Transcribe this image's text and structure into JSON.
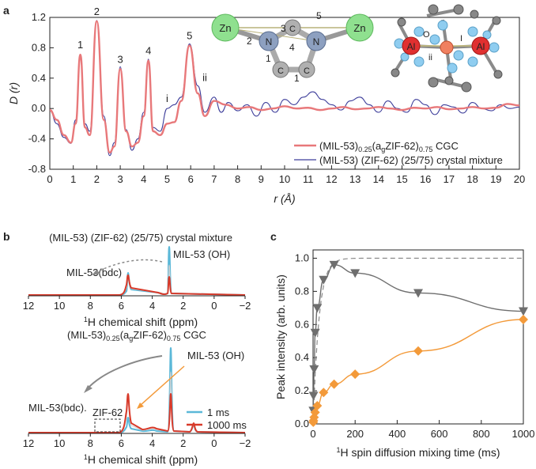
{
  "chart_data": [
    {
      "panel": "a",
      "type": "line",
      "ylabel": "D (r)",
      "xlabel": "r (Å)",
      "xlim": [
        0,
        20
      ],
      "ylim": [
        -0.8,
        1.2
      ],
      "xticks": [
        "0",
        "1",
        "2",
        "3",
        "4",
        "5",
        "6",
        "7",
        "8",
        "9",
        "10",
        "11",
        "12",
        "13",
        "14",
        "15",
        "16",
        "17",
        "18",
        "19",
        "20"
      ],
      "yticks": [
        "-0.8",
        "-0.4",
        "0.0",
        "0.4",
        "0.8",
        "1.2"
      ],
      "peak_labels": [
        {
          "text": "1",
          "x": 1.3,
          "y": 0.71
        },
        {
          "text": "2",
          "x": 2.0,
          "y": 1.15
        },
        {
          "text": "3",
          "x": 3.0,
          "y": 0.52
        },
        {
          "text": "4",
          "x": 4.2,
          "y": 0.63
        },
        {
          "text": "5",
          "x": 5.95,
          "y": 0.83
        },
        {
          "text": "i",
          "x": 5.0,
          "y": 0.0
        },
        {
          "text": "ii",
          "x": 6.6,
          "y": 0.28
        }
      ],
      "series": [
        {
          "name": "(MIL-53)0.25(agZIF-62)0.75 CGC",
          "legend_parts": [
            "(MIL-53)",
            "0.25",
            "(a",
            "g",
            "ZIF-62)",
            "0.75",
            " CGC"
          ],
          "color": "#e8787a",
          "x": [
            0,
            0.3,
            0.6,
            0.9,
            1.1,
            1.3,
            1.5,
            1.7,
            2.0,
            2.3,
            2.55,
            2.75,
            3.0,
            3.25,
            3.5,
            3.75,
            4.0,
            4.2,
            4.4,
            4.7,
            5.0,
            5.3,
            5.6,
            5.95,
            6.3,
            6.6,
            7.0,
            7.5,
            8,
            8.5,
            9,
            9.5,
            10,
            10.5,
            11,
            11.5,
            12,
            12.5,
            13,
            13.5,
            14,
            14.5,
            15,
            15.5,
            16,
            16.5,
            17,
            17.5,
            18,
            18.5,
            19,
            19.5,
            20
          ],
          "y": [
            -0.02,
            -0.15,
            -0.35,
            -0.45,
            -0.2,
            0.71,
            -0.25,
            -0.35,
            1.15,
            -0.15,
            -0.58,
            -0.5,
            0.52,
            -0.3,
            -0.5,
            -0.45,
            -0.1,
            0.63,
            -0.3,
            -0.35,
            -0.2,
            -0.18,
            0.1,
            0.83,
            0.2,
            -0.1,
            0.1,
            0.05,
            0.0,
            0.02,
            -0.02,
            0.0,
            0.03,
            0.0,
            0.01,
            -0.02,
            0.0,
            0.02,
            -0.01,
            0.0,
            0.02,
            0.0,
            -0.02,
            0.01,
            0.0,
            0.02,
            -0.01,
            0.0,
            0.02,
            0.0,
            0.01,
            0.06,
            0.04
          ]
        },
        {
          "name": "(MIL-53) (ZIF-62) (25/75) crystal mixture",
          "legend_parts": [
            "(MIL-53) (ZIF-62) (25/75) crystal mixture"
          ],
          "color": "#3d3d9a",
          "x": [
            0,
            0.3,
            0.6,
            0.9,
            1.1,
            1.3,
            1.5,
            1.7,
            2.0,
            2.3,
            2.55,
            2.75,
            3.0,
            3.25,
            3.5,
            3.75,
            4.0,
            4.2,
            4.4,
            4.7,
            5.0,
            5.3,
            5.6,
            5.95,
            6.3,
            6.6,
            7.0,
            7.3,
            7.6,
            8,
            8.4,
            8.8,
            9.2,
            9.6,
            10,
            10.4,
            10.8,
            11.2,
            11.6,
            12,
            12.4,
            12.8,
            13.2,
            13.6,
            14,
            14.4,
            14.8,
            15.2,
            15.6,
            16,
            16.4,
            16.8,
            17.2,
            17.6,
            18,
            18.4,
            18.8,
            19.2,
            19.6,
            20
          ],
          "y": [
            -0.02,
            -0.2,
            -0.38,
            -0.46,
            -0.15,
            0.71,
            -0.2,
            -0.3,
            1.16,
            -0.1,
            -0.62,
            -0.45,
            0.55,
            -0.28,
            -0.55,
            -0.4,
            -0.05,
            0.65,
            -0.25,
            -0.3,
            0.0,
            0.05,
            0.15,
            0.85,
            0.3,
            -0.05,
            0.15,
            -0.05,
            0.08,
            -0.03,
            0.05,
            -0.1,
            0.08,
            -0.05,
            0.12,
            0.05,
            0.15,
            0.22,
            0.12,
            0.05,
            -0.02,
            0.1,
            0.15,
            0.05,
            -0.05,
            0.1,
            0.0,
            -0.05,
            0.12,
            0.05,
            -0.08,
            0.05,
            0.02,
            -0.06,
            0.08,
            0.0,
            -0.03,
            0.05,
            0.0,
            0.02
          ]
        }
      ],
      "inset_labels": [
        "Zn",
        "Zn",
        "N",
        "N",
        "C",
        "C",
        "C",
        "1",
        "1",
        "2",
        "3",
        "4",
        "5",
        "Al",
        "Al",
        "O",
        "I",
        "ii"
      ]
    },
    {
      "panel": "b",
      "type": "line",
      "xlabel_parts": [
        "1",
        "H chemical shift (ppm)"
      ],
      "xlim": [
        12,
        -2
      ],
      "xticks": [
        "12",
        "10",
        "8",
        "6",
        "4",
        "2",
        "0",
        "−2"
      ],
      "top_title": "(MIL-53) (ZIF-62) (25/75) crystal mixture",
      "bottom_title_parts": [
        "(MIL-53)",
        "0.25",
        "(a",
        "g",
        "ZIF-62)",
        "0.75",
        " CGC"
      ],
      "annotations": [
        "MIL-53(bdc)",
        "MIL-53 (OH)",
        "MIL-53(bdc).",
        "ZIF-62",
        "MIL-53 (OH)"
      ],
      "legend": [
        {
          "label": "1 ms",
          "color": "#5bb8d8"
        },
        {
          "label": "1000 ms",
          "color": "#d83a2a"
        }
      ]
    },
    {
      "panel": "c",
      "type": "scatter",
      "xlabel_parts": [
        "1",
        "H spin diffusion mixing time (ms)"
      ],
      "ylabel": "Peak intensity (arb. units)",
      "xlim": [
        0,
        1000
      ],
      "ylim": [
        0,
        1.05
      ],
      "xticks": [
        "0",
        "200",
        "400",
        "600",
        "800",
        "1000"
      ],
      "yticks": [
        "0.0",
        "0.2",
        "0.4",
        "0.6",
        "0.8",
        "1.0"
      ],
      "series": [
        {
          "name": "gray triangles",
          "color": "#6e6e6e",
          "x": [
            1,
            2,
            5,
            10,
            20,
            50,
            100,
            200,
            500,
            1000
          ],
          "y": [
            0.08,
            0.17,
            0.33,
            0.55,
            0.7,
            0.87,
            0.96,
            0.91,
            0.79,
            0.68
          ]
        },
        {
          "name": "orange diamonds",
          "color": "#f39a3a",
          "x": [
            1,
            2,
            5,
            10,
            20,
            50,
            100,
            200,
            500,
            1000
          ],
          "y": [
            0.01,
            0.02,
            0.04,
            0.07,
            0.11,
            0.19,
            0.24,
            0.3,
            0.44,
            0.63
          ]
        }
      ],
      "dashed_fit": {
        "asymptote": 1.0,
        "color": "#888888"
      }
    }
  ],
  "panels": {
    "a": "a",
    "b": "b",
    "c": "c"
  }
}
